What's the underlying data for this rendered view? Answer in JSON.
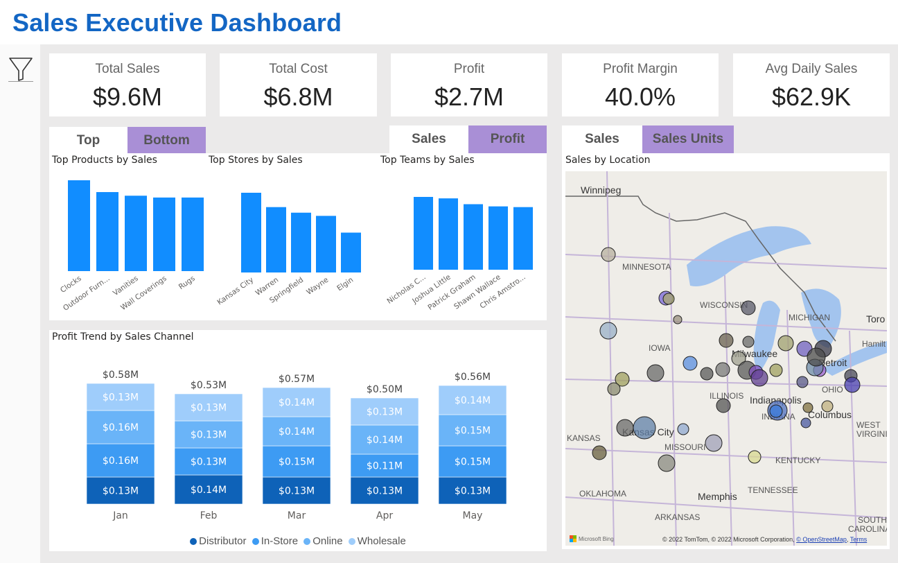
{
  "header": {
    "title": "Sales Executive Dashboard"
  },
  "filter": {
    "icon": "filter-funnel-icon"
  },
  "kpis": [
    {
      "label": "Total Sales",
      "value": "$9.6M"
    },
    {
      "label": "Total Cost",
      "value": "$6.8M"
    },
    {
      "label": "Profit",
      "value": "$2.7M"
    },
    {
      "label": "Profit Margin",
      "value": "40.0%"
    },
    {
      "label": "Avg Daily Sales",
      "value": "$62.9K"
    }
  ],
  "tabs": {
    "rank": [
      {
        "label": "Top",
        "active": true
      },
      {
        "label": "Bottom",
        "active": false
      }
    ],
    "measure": [
      {
        "label": "Sales",
        "active": true
      },
      {
        "label": "Profit",
        "active": false
      }
    ],
    "map": [
      {
        "label": "Sales",
        "active": true
      },
      {
        "label": "Sales Units",
        "active": false
      }
    ]
  },
  "colors": {
    "title": "#1366c4",
    "bar": "#118dff",
    "tab_inactive": "#a98fd6",
    "distributor": "#0e62b8",
    "instore": "#3d9bf3",
    "online": "#6ab4f8",
    "wholesale": "#9fcdfb"
  },
  "chart_data": [
    {
      "type": "bar",
      "title": "Top Products by Sales",
      "categories": [
        "Clocks",
        "Outdoor Furn...",
        "Vanities",
        "Wall Coverings",
        "Rugs"
      ],
      "values": [
        100,
        87,
        83,
        81,
        81
      ],
      "value_unit": "relative (no axis shown)"
    },
    {
      "type": "bar",
      "title": "Top Stores by Sales",
      "categories": [
        "Kansas City",
        "Warren",
        "Springfield",
        "Wayne",
        "Elgin"
      ],
      "values": [
        100,
        82,
        75,
        71,
        50
      ],
      "value_unit": "relative (no axis shown)"
    },
    {
      "type": "bar",
      "title": "Top Teams by Sales",
      "categories": [
        "Nicholas C...",
        "Joshua Little",
        "Patrick Graham",
        "Shawn Wallace",
        "Chris Amstro..."
      ],
      "values": [
        100,
        98,
        90,
        87,
        86
      ],
      "value_unit": "relative (no axis shown)"
    },
    {
      "type": "bar",
      "stacked": true,
      "title": "Profit Trend by Sales Channel",
      "categories": [
        "Jan",
        "Feb",
        "Mar",
        "Apr",
        "May"
      ],
      "totals": [
        0.58,
        0.53,
        0.57,
        0.5,
        0.56
      ],
      "total_labels": [
        "$0.58M",
        "$0.53M",
        "$0.57M",
        "$0.50M",
        "$0.56M"
      ],
      "series": [
        {
          "name": "Distributor",
          "values": [
            0.13,
            0.14,
            0.13,
            0.13,
            0.13
          ],
          "labels": [
            "$0.13M",
            "$0.14M",
            "$0.13M",
            "$0.13M",
            "$0.13M"
          ]
        },
        {
          "name": "In-Store",
          "values": [
            0.16,
            0.13,
            0.15,
            0.11,
            0.15
          ],
          "labels": [
            "$0.16M",
            "$0.13M",
            "$0.15M",
            "$0.11M",
            "$0.15M"
          ]
        },
        {
          "name": "Online",
          "values": [
            0.16,
            0.13,
            0.14,
            0.14,
            0.15
          ],
          "labels": [
            "$0.16M",
            "$0.13M",
            "$0.14M",
            "$0.14M",
            "$0.15M"
          ]
        },
        {
          "name": "Wholesale",
          "values": [
            0.13,
            0.13,
            0.14,
            0.13,
            0.14
          ],
          "labels": [
            "$0.13M",
            "$0.13M",
            "$0.14M",
            "$0.13M",
            "$0.14M"
          ]
        }
      ],
      "legend": "bottom-center",
      "ylim": [
        0,
        0.6
      ]
    }
  ],
  "map": {
    "title": "Sales by Location",
    "labels": {
      "winnipeg": "Winnipeg",
      "minnesota": "MINNESOTA",
      "wisconsin": "WISCONSIN",
      "michigan": "MICHIGAN",
      "iowa": "IOWA",
      "milwaukee": "Milwaukee",
      "illinois": "ILLINOIS",
      "indianapolis": "Indianapolis",
      "indiana": "INDIANA",
      "ohio": "OHIO",
      "columbus": "Columbus",
      "kansas": "KANSAS",
      "kansas_city": "Kansas City",
      "missouri": "MISSOURI",
      "kentucky": "KENTUCKY",
      "west_virginia": "WEST VIRGINIA",
      "tennessee": "TENNESSEE",
      "memphis": "Memphis",
      "oklahoma": "OKLAHOMA",
      "arkansas": "ARKANSAS",
      "south_carolina": "SOUTH CAROLINA",
      "toronto": "Toro",
      "hamilton": "Hamilt",
      "detroit": "Detroit"
    },
    "bing_label": "Microsoft Bing",
    "attribution": "© 2022 TomTom, © 2022 Microsoft Corporation,",
    "osm_link": "© OpenStreetMap",
    "terms_link": "Terms"
  }
}
